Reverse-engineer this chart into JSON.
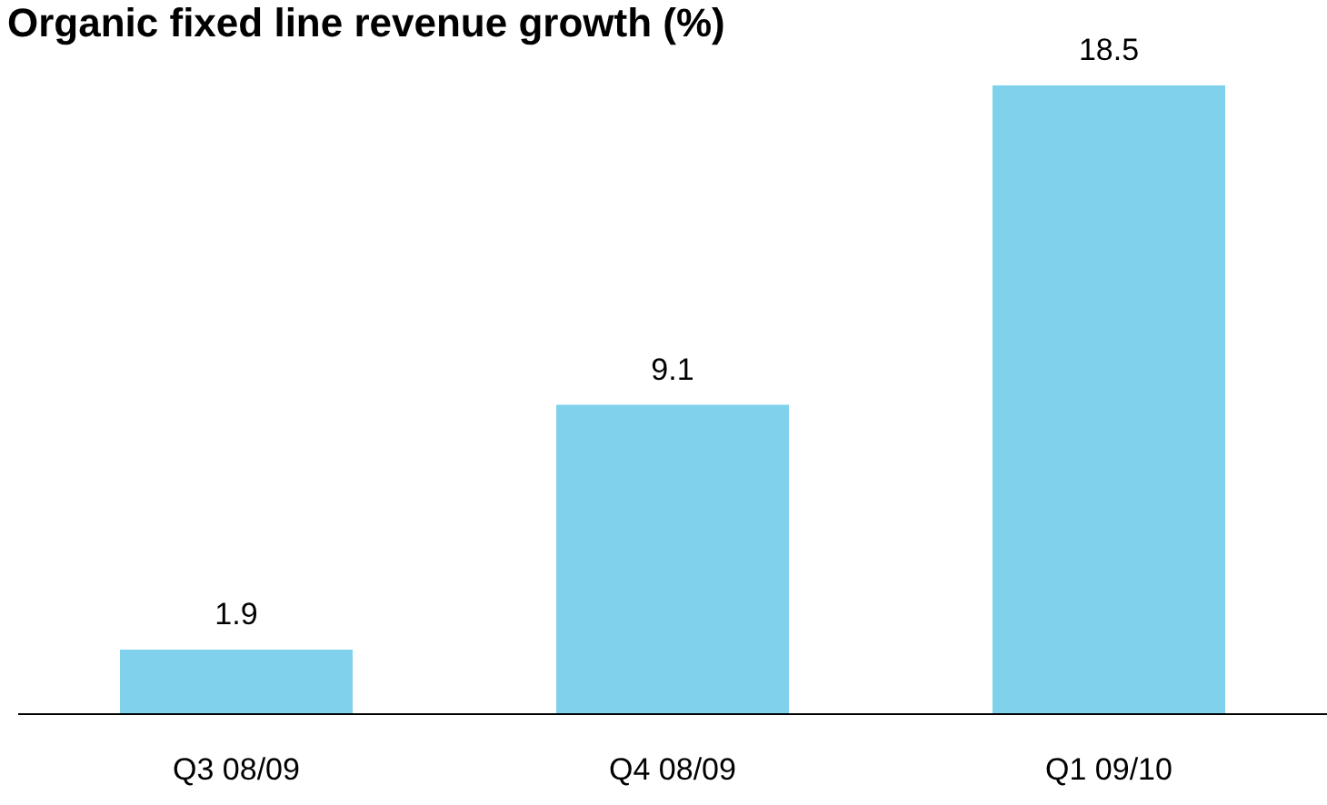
{
  "chart_data": {
    "type": "bar",
    "title": "Organic fixed line revenue growth (%)",
    "categories": [
      "Q3 08/09",
      "Q4 08/09",
      "Q1 09/10"
    ],
    "values": [
      1.9,
      9.1,
      18.5
    ],
    "color": "#7fd1ec",
    "data_labels": true,
    "grid": false
  }
}
